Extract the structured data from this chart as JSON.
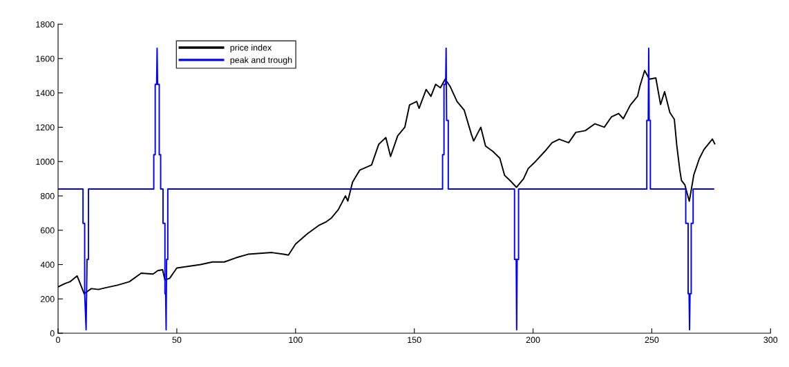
{
  "chart_data": {
    "type": "line",
    "xlim": [
      0,
      300
    ],
    "ylim": [
      0,
      1800
    ],
    "xticks": [
      0,
      50,
      100,
      150,
      200,
      250,
      300
    ],
    "yticks": [
      0,
      200,
      400,
      600,
      800,
      1000,
      1200,
      1400,
      1600,
      1800
    ],
    "grid": false,
    "legend": "top left",
    "marker": "none",
    "line_style": "solid",
    "series": [
      {
        "name": "price index",
        "color": "#000000",
        "x": [
          0,
          3,
          5,
          8,
          9,
          11,
          14,
          17,
          20,
          25,
          30,
          35,
          40,
          42,
          44,
          45,
          47,
          50,
          55,
          60,
          65,
          70,
          75,
          80,
          85,
          90,
          95,
          97,
          100,
          105,
          110,
          113,
          115,
          118,
          121,
          122,
          124,
          127,
          132,
          135,
          138,
          140,
          143,
          146,
          148,
          151,
          152,
          155,
          157,
          159,
          161,
          163,
          165,
          168,
          171,
          174,
          175,
          178,
          180,
          183,
          186,
          188,
          191,
          193,
          196,
          198,
          201,
          205,
          208,
          211,
          215,
          218,
          222,
          226,
          230,
          233,
          236,
          238,
          241,
          244,
          245,
          247,
          249,
          251.7,
          253.7,
          255.4,
          257.6,
          259.5,
          260.5,
          261.8,
          262.5,
          263.9,
          265.8,
          267.7,
          270,
          272,
          275.5,
          276.5
        ],
        "values": [
          270,
          290,
          300,
          334,
          300,
          230,
          260,
          255,
          265,
          280,
          300,
          350,
          345,
          365,
          370,
          310,
          320,
          380,
          390,
          400,
          415,
          415,
          440,
          460,
          465,
          470,
          460,
          455,
          520,
          580,
          630,
          650,
          670,
          720,
          800,
          770,
          880,
          950,
          980,
          1100,
          1140,
          1030,
          1150,
          1200,
          1330,
          1350,
          1310,
          1420,
          1380,
          1450,
          1430,
          1480,
          1440,
          1350,
          1300,
          1160,
          1120,
          1200,
          1090,
          1060,
          1020,
          920,
          880,
          850,
          900,
          960,
          1000,
          1060,
          1110,
          1130,
          1110,
          1170,
          1180,
          1220,
          1200,
          1260,
          1280,
          1250,
          1330,
          1380,
          1440,
          1530,
          1480,
          1487,
          1332,
          1407,
          1286,
          1246,
          1097,
          950,
          890,
          865,
          769,
          923,
          1017,
          1071,
          1131,
          1104
        ]
      },
      {
        "name": "peak and trough",
        "color": "#0000ff",
        "x": [
          0,
          10.5,
          10.5,
          11.2,
          11.2,
          11.8,
          12.2,
          12.8,
          12.8,
          40.3,
          40.3,
          40.9,
          40.9,
          41.5,
          41.7,
          41.9,
          42.6,
          42.6,
          43.2,
          43.2,
          44.2,
          44.2,
          45,
          45,
          45.3,
          45.5,
          45.7,
          46.2,
          46.2,
          161.9,
          161.9,
          162.5,
          162.5,
          163.2,
          163.4,
          163.6,
          164.3,
          164.3,
          192.2,
          192.2,
          192.9,
          193.1,
          193.3,
          193.9,
          193.9,
          247.9,
          247.9,
          248.5,
          248.7,
          248.9,
          249.4,
          249.4,
          264.3,
          264.3,
          265.3,
          265.3,
          265.7,
          265.9,
          266.1,
          266.6,
          266.6,
          267.4,
          267.4,
          276
        ],
        "values": [
          840,
          840,
          640,
          640,
          230,
          20,
          430,
          430,
          840,
          840,
          1040,
          1040,
          1450,
          1450,
          1660,
          1450,
          1450,
          1040,
          1040,
          840,
          840,
          640,
          640,
          230,
          230,
          20,
          430,
          430,
          840,
          840,
          1040,
          1040,
          1450,
          1450,
          1660,
          1240,
          1240,
          840,
          840,
          430,
          430,
          20,
          430,
          430,
          840,
          840,
          1240,
          1240,
          1660,
          1240,
          1240,
          840,
          840,
          640,
          640,
          230,
          230,
          20,
          230,
          230,
          640,
          640,
          840,
          840
        ]
      }
    ]
  }
}
